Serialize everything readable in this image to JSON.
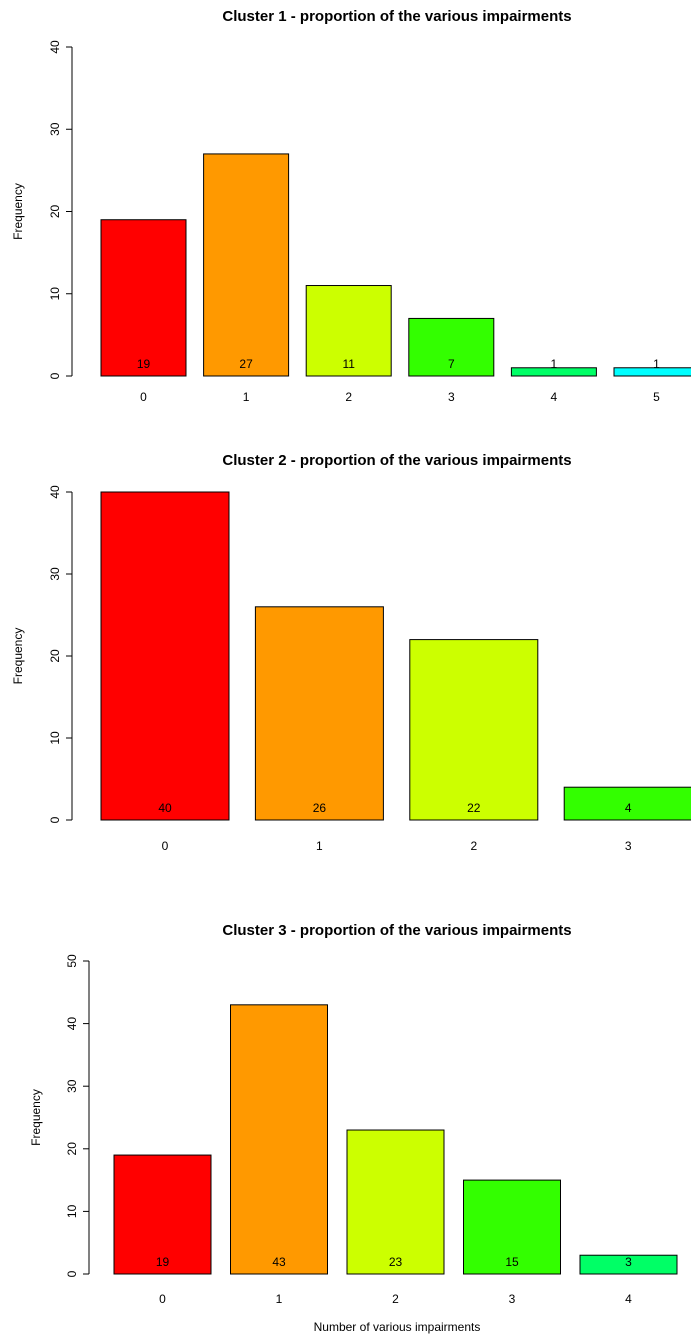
{
  "chart_data": [
    {
      "type": "bar",
      "title": "Cluster 1 - proportion of the various impairments",
      "xlabel": "",
      "ylabel": "Frequency",
      "categories": [
        "0",
        "1",
        "2",
        "3",
        "4",
        "5"
      ],
      "values": [
        19,
        27,
        11,
        7,
        1,
        1
      ],
      "data_labels": [
        "19",
        "27",
        "11",
        "7",
        "1",
        "1"
      ],
      "colors": [
        "#FF0000",
        "#FF9900",
        "#CCFF00",
        "#33FF00",
        "#00FF66",
        "#00FFFF"
      ],
      "ylim": [
        0,
        40
      ],
      "yticks": [
        0,
        10,
        20,
        30,
        40
      ],
      "grid": false,
      "legend": "none"
    },
    {
      "type": "bar",
      "title": "Cluster 2 - proportion of the various impairments",
      "xlabel": "",
      "ylabel": "Frequency",
      "categories": [
        "0",
        "1",
        "2",
        "3"
      ],
      "values": [
        40,
        26,
        22,
        4
      ],
      "data_labels": [
        "40",
        "26",
        "22",
        "4"
      ],
      "colors": [
        "#FF0000",
        "#FF9900",
        "#CCFF00",
        "#33FF00"
      ],
      "ylim": [
        0,
        40
      ],
      "yticks": [
        0,
        10,
        20,
        30,
        40
      ],
      "grid": false,
      "legend": "none"
    },
    {
      "type": "bar",
      "title": "Cluster 3 - proportion of the various impairments",
      "xlabel": "Number of various impairments",
      "ylabel": "Frequency",
      "categories": [
        "0",
        "1",
        "2",
        "3",
        "4"
      ],
      "values": [
        19,
        43,
        23,
        15,
        3
      ],
      "data_labels": [
        "19",
        "43",
        "23",
        "15",
        "3"
      ],
      "colors": [
        "#FF0000",
        "#FF9900",
        "#CCFF00",
        "#33FF00",
        "#00FF66"
      ],
      "ylim": [
        0,
        50
      ],
      "yticks": [
        0,
        10,
        20,
        30,
        40,
        50
      ],
      "grid": false,
      "legend": "none"
    }
  ]
}
